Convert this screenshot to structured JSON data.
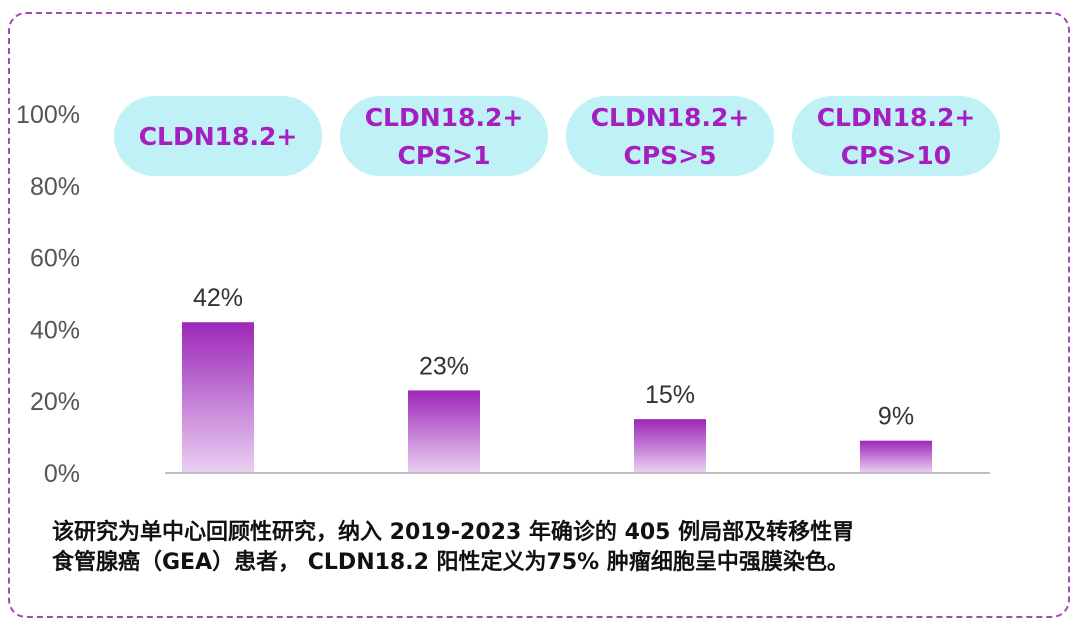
{
  "chart_data": {
    "type": "bar",
    "categories": [
      "CLDN18.2+",
      "CLDN18.2+ CPS>1",
      "CLDN18.2+ CPS>5",
      "CLDN18.2+ CPS>10"
    ],
    "category_labels": [
      [
        "CLDN18.2+"
      ],
      [
        "CLDN18.2+",
        "CPS>1"
      ],
      [
        "CLDN18.2+",
        "CPS>5"
      ],
      [
        "CLDN18.2+",
        "CPS>10"
      ]
    ],
    "values": [
      42,
      23,
      15,
      9
    ],
    "value_labels": [
      "42%",
      "23%",
      "15%",
      "9%"
    ],
    "ylim": [
      0,
      100
    ],
    "yticks": [
      "0%",
      "20%",
      "40%",
      "60%",
      "80%",
      "100%"
    ],
    "grid": false,
    "colors": {
      "bar_top": "#9c27b8",
      "bar_bottom": "#ead0f2",
      "pill": "#bff1f7",
      "pill_text": "#a51fc0",
      "axis_text": "#555555",
      "border": "#a349b8"
    }
  },
  "caption": {
    "line1": "该研究为单中心回顾性研究，纳入 2019-2023 年确诊的 405 例局部及转移性胃",
    "line2": "食管腺癌（GEA）患者， CLDN18.2 阳性定义为75% 肿瘤细胞呈中强膜染色。"
  }
}
